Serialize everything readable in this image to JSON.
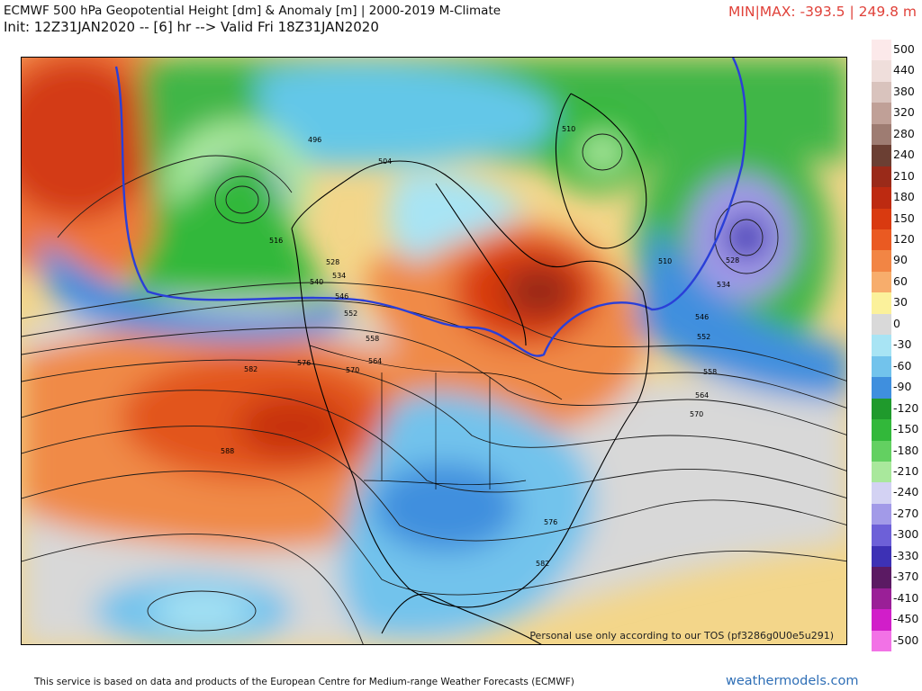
{
  "header": {
    "title_line1": "ECMWF 500 hPa Geopotential Height [dm] & Anomaly [m] | 2000-2019 M-Climate",
    "title_line2": "Init: 12Z31JAN2020 -- [6] hr --> Valid Fri 18Z31JAN2020",
    "minmax": "MIN|MAX: -393.5 | 249.8 m"
  },
  "map": {
    "tos_notice": "Personal use only according to our TOS (pf3286g0U0e5u291)",
    "contour_labels": [
      "496",
      "504",
      "510",
      "516",
      "528",
      "534",
      "540",
      "546",
      "552",
      "558",
      "564",
      "570",
      "576",
      "582",
      "588",
      "528",
      "534",
      "546",
      "552",
      "558",
      "564",
      "570",
      "576",
      "582",
      "510"
    ]
  },
  "colorbar": {
    "entries": [
      {
        "label": "500",
        "color": "#fce9ea"
      },
      {
        "label": "440",
        "color": "#efdedb"
      },
      {
        "label": "380",
        "color": "#d9c3bd"
      },
      {
        "label": "320",
        "color": "#c0a097"
      },
      {
        "label": "280",
        "color": "#9e7c72"
      },
      {
        "label": "240",
        "color": "#6b3f33"
      },
      {
        "label": "210",
        "color": "#9a2a19"
      },
      {
        "label": "180",
        "color": "#bd2a11"
      },
      {
        "label": "150",
        "color": "#d93a10"
      },
      {
        "label": "120",
        "color": "#ea5a22"
      },
      {
        "label": "90",
        "color": "#f28544"
      },
      {
        "label": "60",
        "color": "#f7ad6c"
      },
      {
        "label": "30",
        "color": "#fbf19b"
      },
      {
        "label": "0",
        "color": "#d9d9d9"
      },
      {
        "label": "-30",
        "color": "#a8e4f4"
      },
      {
        "label": "-60",
        "color": "#72c3ec"
      },
      {
        "label": "-90",
        "color": "#3f8fde"
      },
      {
        "label": "-120",
        "color": "#1f9a2c"
      },
      {
        "label": "-150",
        "color": "#32b83a"
      },
      {
        "label": "-180",
        "color": "#63d061"
      },
      {
        "label": "-210",
        "color": "#a9e89c"
      },
      {
        "label": "-240",
        "color": "#d3d2f3"
      },
      {
        "label": "-270",
        "color": "#a29ae8"
      },
      {
        "label": "-300",
        "color": "#6d60d8"
      },
      {
        "label": "-330",
        "color": "#3d31b5"
      },
      {
        "label": "-370",
        "color": "#5b1a63"
      },
      {
        "label": "-410",
        "color": "#9a1f97"
      },
      {
        "label": "-450",
        "color": "#d11ec9"
      },
      {
        "label": "-500",
        "color": "#f272e6"
      }
    ]
  },
  "footer": {
    "credit": "This service is based on data and products of the European Centre for Medium-range Weather Forecasts (ECMWF)",
    "site": "weathermodels.com"
  }
}
